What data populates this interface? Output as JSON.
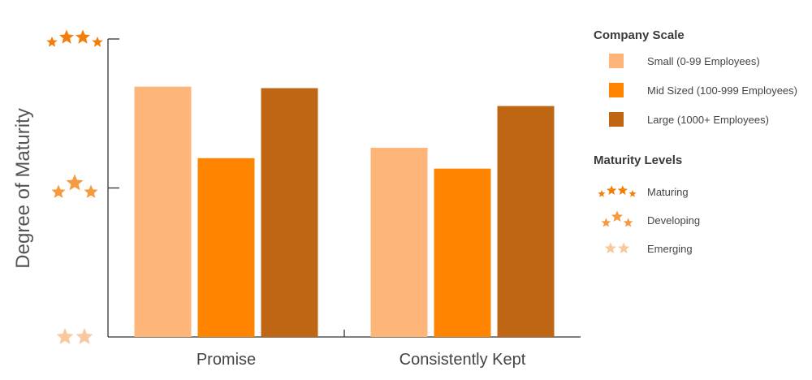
{
  "chart_data": {
    "type": "bar",
    "ylabel": "Degree of Maturity",
    "xlabel": "",
    "categories": [
      "Promise",
      "Consistently Kept"
    ],
    "ylim": [
      1,
      3
    ],
    "y_ticks": [
      1,
      2,
      3
    ],
    "y_tick_icons": [
      {
        "value": 1,
        "icon": "two-stars-icon",
        "level": "Emerging"
      },
      {
        "value": 2,
        "icon": "three-stars-icon",
        "level": "Developing"
      },
      {
        "value": 3,
        "icon": "four-stars-icon",
        "level": "Maturing"
      }
    ],
    "series": [
      {
        "name": "Small (0-99 Employees)",
        "color": "#FDB57A",
        "values": [
          2.68,
          2.27
        ]
      },
      {
        "name": "Mid Sized (100-999 Employees)",
        "color": "#FF8500",
        "values": [
          2.2,
          2.13
        ]
      },
      {
        "name": "Large (1000+ Employees)",
        "color": "#BE6614",
        "values": [
          2.67,
          2.55
        ]
      }
    ],
    "grid": false,
    "legend_position": "right",
    "legends": {
      "company_scale_title": "Company Scale",
      "maturity_title": "Maturity Levels",
      "maturity_levels": [
        {
          "label": "Maturing",
          "icon": "four-stars-icon"
        },
        {
          "label": "Developing",
          "icon": "three-stars-icon"
        },
        {
          "label": "Emerging",
          "icon": "two-stars-icon"
        }
      ]
    },
    "colors": {
      "axis": "#333333",
      "star_dark": "#F27F0C",
      "star_mid": "#F59A3E",
      "star_light": "#F8C9A0"
    }
  }
}
